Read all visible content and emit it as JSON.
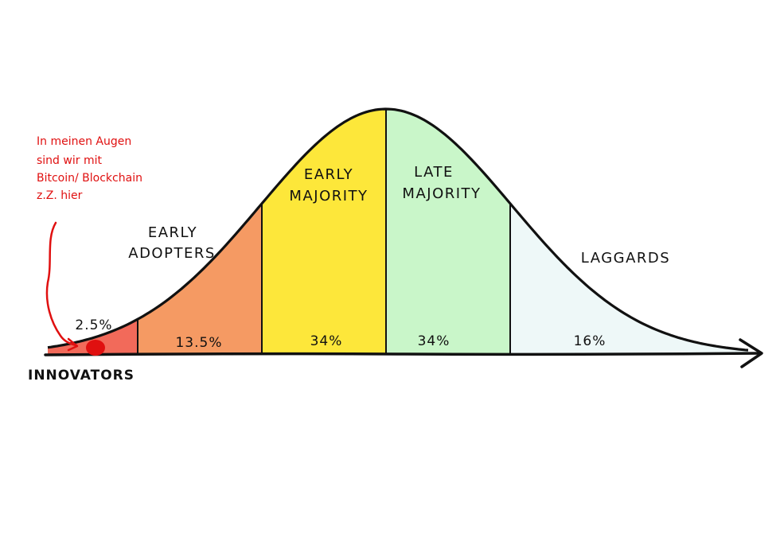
{
  "segments": [
    {
      "id": "innovators",
      "label": "INNOVATORS",
      "percent": "2.5%",
      "color": "#f26a5a"
    },
    {
      "id": "early-adopters",
      "label_lines": [
        "EARLY",
        "ADOPTERS"
      ],
      "percent": "13.5%",
      "color": "#f59a63"
    },
    {
      "id": "early-majority",
      "label_lines": [
        "EARLY",
        "MAJORITY"
      ],
      "percent": "34%",
      "color": "#fde73a"
    },
    {
      "id": "late-majority",
      "label_lines": [
        "LATE",
        "MAJORITY"
      ],
      "percent": "34%",
      "color": "#c9f6c9"
    },
    {
      "id": "laggards",
      "label_lines": [
        "LAGGARDS"
      ],
      "percent": "16%",
      "color": "#eef8f8"
    }
  ],
  "annotation": {
    "lines": [
      "In meinen Augen",
      "sind wir mit",
      "Bitcoin/ Blockchain",
      "z.Z. hier"
    ],
    "color": "#e01010"
  }
}
